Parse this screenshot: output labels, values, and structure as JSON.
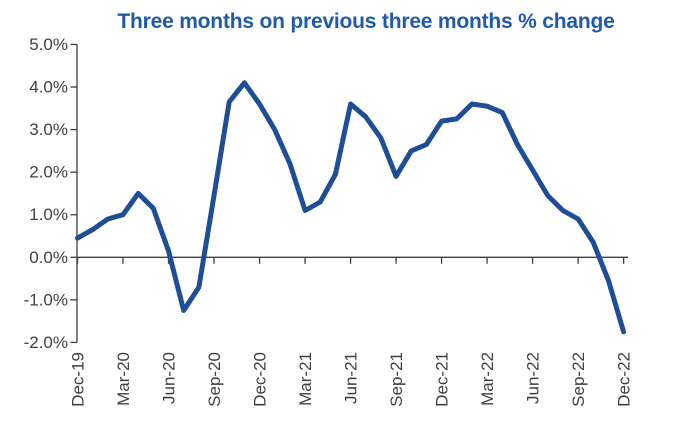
{
  "chart_data": {
    "type": "line",
    "title": "Three months on previous three months % change",
    "categories": [
      "Dec-19",
      "Jan-20",
      "Feb-20",
      "Mar-20",
      "Apr-20",
      "May-20",
      "Jun-20",
      "Jul-20",
      "Aug-20",
      "Sep-20",
      "Oct-20",
      "Nov-20",
      "Dec-20",
      "Jan-21",
      "Feb-21",
      "Mar-21",
      "Apr-21",
      "May-21",
      "Jun-21",
      "Jul-21",
      "Aug-21",
      "Sep-21",
      "Oct-21",
      "Nov-21",
      "Dec-21",
      "Jan-22",
      "Feb-22",
      "Mar-22",
      "Apr-22",
      "May-22",
      "Jun-22",
      "Jul-22",
      "Aug-22",
      "Sep-22",
      "Oct-22",
      "Nov-22",
      "Dec-22"
    ],
    "values": [
      0.45,
      0.65,
      0.9,
      1.0,
      1.5,
      1.15,
      0.15,
      -1.25,
      -0.7,
      1.45,
      3.65,
      4.1,
      3.6,
      3.0,
      2.2,
      1.1,
      1.3,
      1.95,
      3.6,
      3.3,
      2.8,
      1.9,
      2.5,
      2.65,
      3.2,
      3.25,
      3.6,
      3.55,
      3.4,
      2.65,
      2.05,
      1.45,
      1.1,
      0.9,
      0.35,
      -0.55,
      -1.75
    ],
    "x_tick_labels": [
      "Dec-19",
      "Mar-20",
      "Jun-20",
      "Sep-20",
      "Dec-20",
      "Mar-21",
      "Jun-21",
      "Sep-21",
      "Dec-21",
      "Mar-22",
      "Jun-22",
      "Sep-22",
      "Dec-22"
    ],
    "y_tick_labels": [
      "5.0%",
      "4.0%",
      "3.0%",
      "2.0%",
      "1.0%",
      "0.0%",
      "-1.0%",
      "-2.0%"
    ],
    "xlabel": "",
    "ylabel": "",
    "ylim": [
      -2.0,
      5.0
    ],
    "grid": false,
    "legend": false,
    "zero_baseline": true,
    "colors": {
      "line": "#1F4E99",
      "title": "#1F5BA9",
      "axis": "#3F3F3F",
      "tick_text": "#404040",
      "background": "#FFFFFF"
    }
  }
}
